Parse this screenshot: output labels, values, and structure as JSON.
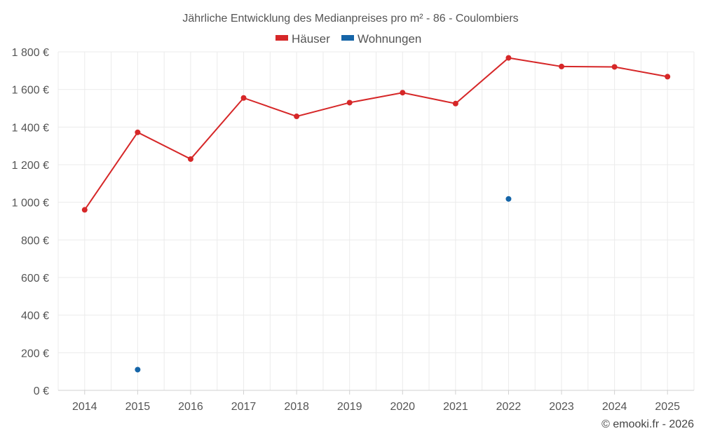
{
  "chart_data": {
    "type": "line",
    "title": "Jährliche Entwicklung des Medianpreises pro m² - 86 - Coulombiers",
    "categories": [
      "2014",
      "2015",
      "2016",
      "2017",
      "2018",
      "2019",
      "2020",
      "2021",
      "2022",
      "2023",
      "2024",
      "2025"
    ],
    "series": [
      {
        "name": "Häuser",
        "color": "#d62728",
        "style": "line",
        "values": [
          960,
          1372,
          1230,
          1555,
          1457,
          1530,
          1583,
          1525,
          1768,
          1722,
          1720,
          1668
        ]
      },
      {
        "name": "Wohnungen",
        "color": "#1565a8",
        "style": "points",
        "values": [
          null,
          110,
          null,
          null,
          null,
          null,
          null,
          null,
          1018,
          null,
          null,
          null
        ]
      }
    ],
    "y_ticks": [
      0,
      200,
      400,
      600,
      800,
      1000,
      1200,
      1400,
      1600,
      1800
    ],
    "y_tick_labels": [
      "0 €",
      "200 €",
      "400 €",
      "600 €",
      "800 €",
      "1 000 €",
      "1 200 €",
      "1 400 €",
      "1 600 €",
      "1 800 €"
    ],
    "ylim": [
      0,
      1800
    ],
    "xlabel": "",
    "ylabel": "",
    "grid": true,
    "legend_position": "top-center"
  },
  "credit": "© emooki.fr - 2026"
}
